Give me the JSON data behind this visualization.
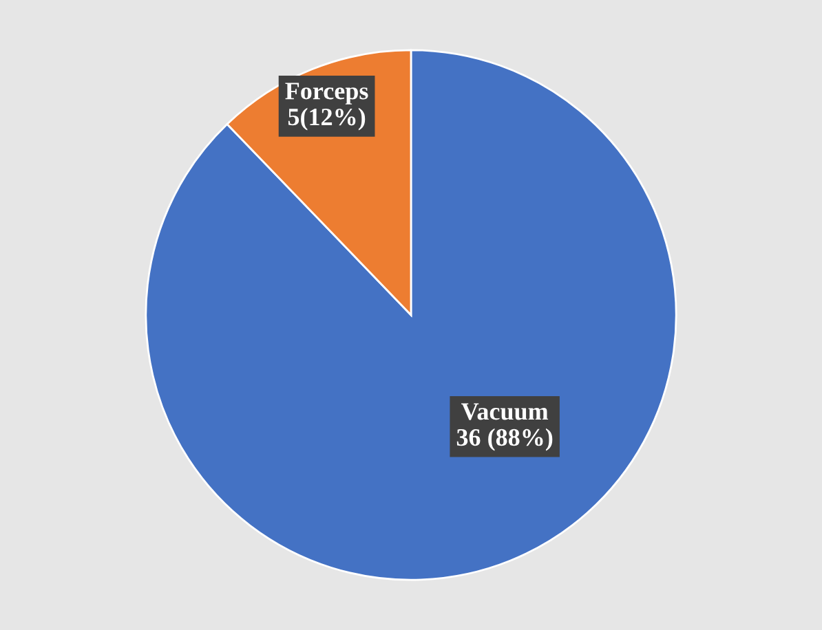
{
  "chart_data": {
    "type": "pie",
    "categories": [
      "Vacuum",
      "Forceps"
    ],
    "values": [
      36,
      5
    ],
    "colors": [
      "#4472c4",
      "#ed7d31"
    ],
    "value_labels": [
      "36 (88%)",
      "5(12%)"
    ],
    "legend": false
  }
}
